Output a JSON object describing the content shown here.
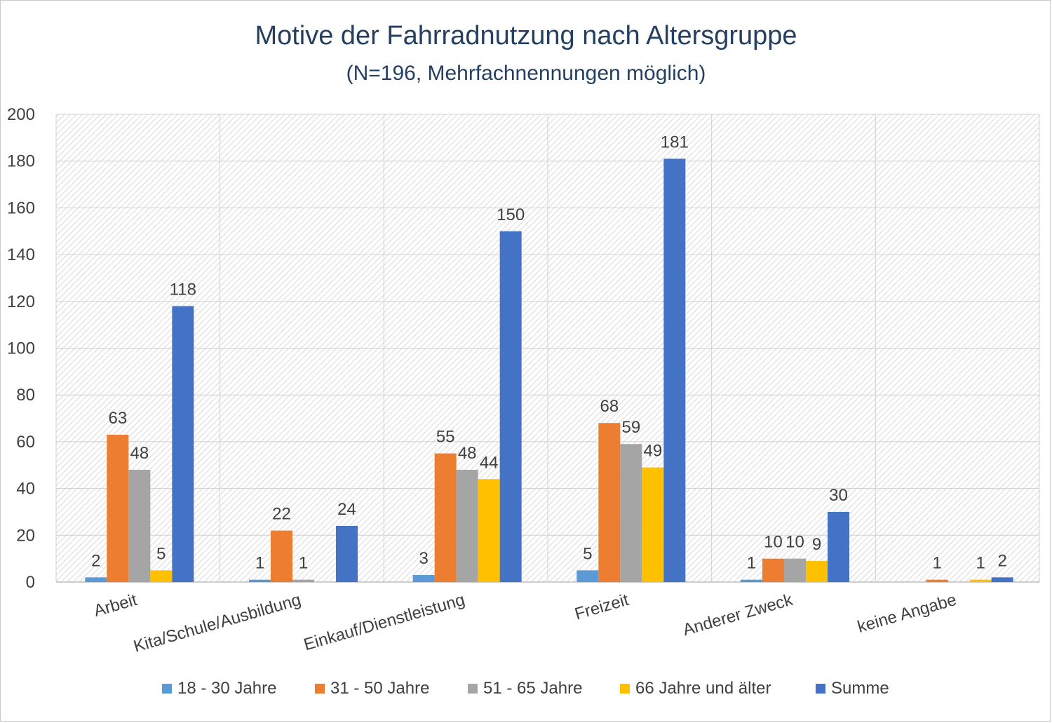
{
  "chart_data": {
    "type": "bar",
    "title": "Motive der Fahrradnutzung nach Altersgruppe",
    "subtitle": "(N=196, Mehrfachnennungen möglich)",
    "categories": [
      "Arbeit",
      "Kita/Schule/Ausbildung",
      "Einkauf/Dienstleistung",
      "Freizeit",
      "Anderer Zweck",
      "keine Angabe"
    ],
    "series": [
      {
        "name": "18 - 30 Jahre",
        "color": "#5b9bd5",
        "values": [
          2,
          1,
          3,
          5,
          1,
          0
        ]
      },
      {
        "name": "31 - 50 Jahre",
        "color": "#ed7d31",
        "values": [
          63,
          22,
          55,
          68,
          10,
          1
        ]
      },
      {
        "name": "51 - 65 Jahre",
        "color": "#a5a5a5",
        "values": [
          48,
          1,
          48,
          59,
          10,
          0
        ]
      },
      {
        "name": "66 Jahre und älter",
        "color": "#ffc000",
        "values": [
          5,
          0,
          44,
          49,
          9,
          1
        ]
      },
      {
        "name": "Summe",
        "color": "#4472c4",
        "values": [
          118,
          24,
          150,
          181,
          30,
          2
        ]
      }
    ],
    "labels": [
      [
        "2",
        "63",
        "48",
        "5",
        "118"
      ],
      [
        "1",
        "22",
        "1",
        "",
        "24"
      ],
      [
        "3",
        "55",
        "48",
        "44",
        "150"
      ],
      [
        "5",
        "68",
        "59",
        "49",
        "181"
      ],
      [
        "1",
        "10",
        "10",
        "9",
        "30"
      ],
      [
        "",
        "1",
        "",
        "1",
        "2"
      ]
    ],
    "ylim": [
      0,
      200
    ],
    "yticks": [
      0,
      20,
      40,
      60,
      80,
      100,
      120,
      140,
      160,
      180,
      200
    ],
    "xlabel": "",
    "ylabel": "",
    "grid": true,
    "legend_position": "bottom"
  }
}
